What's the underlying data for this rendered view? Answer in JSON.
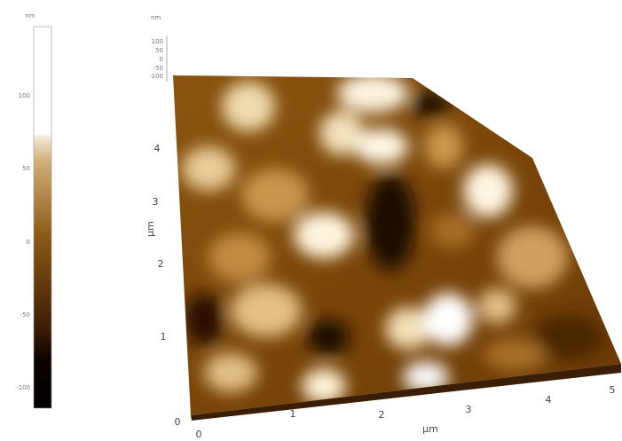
{
  "colorbar": {
    "unit": "nm",
    "ticks": [
      "100",
      "50",
      "0",
      "-50",
      "-100"
    ]
  },
  "plot": {
    "z_unit": "nm",
    "z_ticks": [
      "100",
      "50",
      "0",
      "-50",
      "-100"
    ],
    "y_label": "µm",
    "y_ticks": [
      "1",
      "2",
      "3",
      "4"
    ],
    "x_label": "µm",
    "x_ticks": [
      "0",
      "1",
      "2",
      "3",
      "4",
      "5"
    ],
    "origin": "0"
  }
}
